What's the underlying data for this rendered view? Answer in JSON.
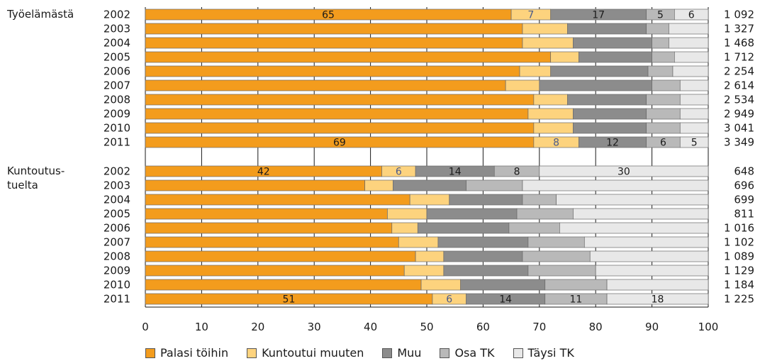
{
  "chart_data": {
    "type": "bar",
    "orientation": "horizontal",
    "stacked": true,
    "xlim": [
      0,
      100
    ],
    "xticks": [
      "0",
      "10",
      "20",
      "30",
      "40",
      "50",
      "60",
      "70",
      "80",
      "90",
      "100"
    ],
    "grid": "vertical",
    "legend_position": "bottom",
    "series": [
      {
        "name": "Palasi töihin",
        "color": "#f39c1d"
      },
      {
        "name": "Kuntoutui muuten",
        "color": "#fdd37e"
      },
      {
        "name": "Muu",
        "color": "#8c8c8c"
      },
      {
        "name": "Osa TK",
        "color": "#b9b9b9"
      },
      {
        "name": "Täysi TK",
        "color": "#e8e8e8"
      }
    ],
    "groups": [
      {
        "label": "Työelämästä",
        "rows": [
          {
            "year": "2002",
            "values": [
              65,
              7,
              17,
              5,
              6
            ],
            "total": "1 092",
            "labels": [
              "65",
              "7",
              "17",
              "5",
              "6"
            ]
          },
          {
            "year": "2003",
            "values": [
              67,
              8,
              14,
              4,
              7
            ],
            "total": "1 327"
          },
          {
            "year": "2004",
            "values": [
              67,
              9,
              14,
              3,
              7
            ],
            "total": "1 468"
          },
          {
            "year": "2005",
            "values": [
              72,
              5,
              13,
              4,
              6
            ],
            "total": "1 712"
          },
          {
            "year": "2006",
            "values": [
              66.5,
              5.5,
              17.3,
              4.4,
              6.3
            ],
            "total": "2 254"
          },
          {
            "year": "2007",
            "values": [
              64,
              6,
              20,
              5,
              5
            ],
            "total": "2 614"
          },
          {
            "year": "2008",
            "values": [
              69,
              6,
              14,
              6,
              5
            ],
            "total": "2 534"
          },
          {
            "year": "2009",
            "values": [
              68,
              8,
              13,
              6,
              5
            ],
            "total": "2 949"
          },
          {
            "year": "2010",
            "values": [
              69,
              7,
              13,
              6,
              5
            ],
            "total": "3 041"
          },
          {
            "year": "2011",
            "values": [
              69,
              8,
              12,
              6,
              5
            ],
            "total": "3 349",
            "labels": [
              "69",
              "8",
              "12",
              "6",
              "5"
            ]
          }
        ]
      },
      {
        "label": "Kuntoutus-\ntuelta",
        "rows": [
          {
            "year": "2002",
            "values": [
              42,
              6,
              14,
              8,
              30
            ],
            "total": "648",
            "labels": [
              "42",
              "6",
              "14",
              "8",
              "30"
            ]
          },
          {
            "year": "2003",
            "values": [
              39,
              5,
              13,
              10,
              33
            ],
            "total": "696"
          },
          {
            "year": "2004",
            "values": [
              47,
              7,
              13,
              6,
              27
            ],
            "total": "699"
          },
          {
            "year": "2005",
            "values": [
              43,
              7,
              16,
              10,
              24
            ],
            "total": "811"
          },
          {
            "year": "2006",
            "values": [
              43.8,
              4.6,
              16.2,
              9,
              26.4
            ],
            "total": "1 016"
          },
          {
            "year": "2007",
            "values": [
              45,
              7,
              16,
              10,
              22
            ],
            "total": "1 102"
          },
          {
            "year": "2008",
            "values": [
              48,
              5,
              14,
              12,
              21
            ],
            "total": "1 089"
          },
          {
            "year": "2009",
            "values": [
              46,
              7,
              15,
              12,
              20
            ],
            "total": "1 129"
          },
          {
            "year": "2010",
            "values": [
              49,
              7,
              15,
              11,
              18
            ],
            "total": "1 184"
          },
          {
            "year": "2011",
            "values": [
              51,
              6,
              14,
              11,
              18
            ],
            "total": "1 225",
            "labels": [
              "51",
              "6",
              "14",
              "11",
              "18"
            ]
          }
        ]
      }
    ]
  }
}
